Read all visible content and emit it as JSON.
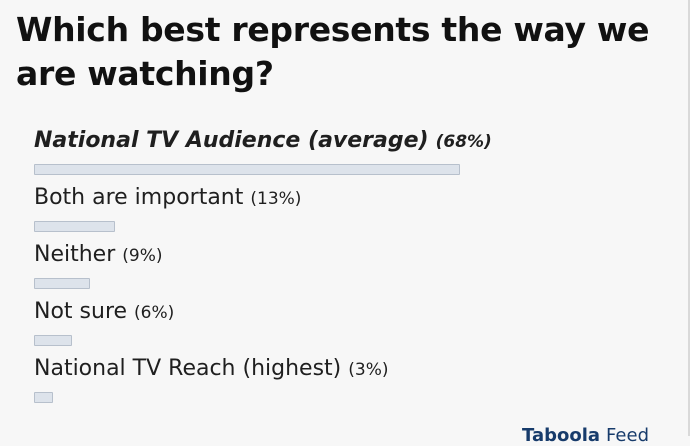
{
  "poll": {
    "question": "Which best represents the way we are watching?",
    "options": [
      {
        "label": "National TV Audience (average)",
        "percent_text": "(68%)",
        "percent": 68,
        "selected": true
      },
      {
        "label": "Both are important",
        "percent_text": "(13%)",
        "percent": 13,
        "selected": false
      },
      {
        "label": "Neither",
        "percent_text": "(9%)",
        "percent": 9,
        "selected": false
      },
      {
        "label": "Not sure",
        "percent_text": "(6%)",
        "percent": 6,
        "selected": false
      },
      {
        "label": "National TV Reach (highest)",
        "percent_text": "(3%)",
        "percent": 3,
        "selected": false
      }
    ]
  },
  "footer": {
    "brand": "Taboola",
    "feed": "Feed"
  },
  "colors": {
    "background": "#f7f7f7",
    "title": "#111111",
    "bar_fill": "#dde3eb",
    "bar_border": "#b7c0cc",
    "logo": "#173b6b"
  }
}
